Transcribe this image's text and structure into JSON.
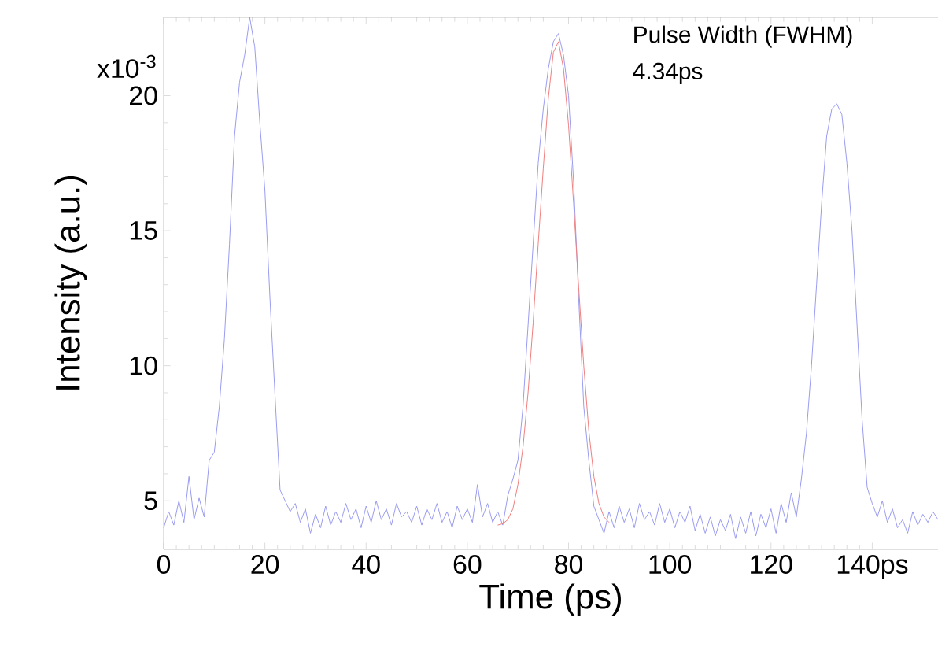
{
  "chart_data": {
    "type": "line",
    "xlabel": "Time (ps)",
    "ylabel": "Intensity (a.u.)",
    "annotations": [
      "x10$^{-3}$",
      "Pulse Width (FWHM)",
      "4.34ps"
    ],
    "xlim": [
      0,
      153
    ],
    "ylim": [
      3.2,
      22.9
    ],
    "xticks": [
      0,
      20,
      40,
      60,
      80,
      100,
      120,
      {
        "value": 140,
        "label": "140ps"
      }
    ],
    "yticks": [
      5,
      10,
      15,
      20
    ],
    "grid": false,
    "marker": "none",
    "line_style": "solid",
    "series": [
      {
        "color": "#9a9cf0",
        "x": [
          0,
          1,
          2,
          3,
          4,
          5,
          6,
          7,
          8,
          9,
          10,
          11,
          12,
          13,
          14,
          15,
          16,
          17,
          18,
          19,
          20,
          21,
          22,
          23,
          24,
          25,
          26,
          27,
          28,
          29,
          30,
          31,
          32,
          33,
          34,
          35,
          36,
          37,
          38,
          39,
          40,
          41,
          42,
          43,
          44,
          45,
          46,
          47,
          48,
          49,
          50,
          51,
          52,
          53,
          54,
          55,
          56,
          57,
          58,
          59,
          60,
          61,
          62,
          63,
          64,
          65,
          66,
          67,
          68,
          69,
          70,
          71,
          72,
          73,
          74,
          75,
          76,
          77,
          78,
          79,
          80,
          81,
          82,
          83,
          84,
          85,
          86,
          87,
          88,
          89,
          90,
          91,
          92,
          93,
          94,
          95,
          96,
          97,
          98,
          99,
          100,
          101,
          102,
          103,
          104,
          105,
          106,
          107,
          108,
          109,
          110,
          111,
          112,
          113,
          114,
          115,
          116,
          117,
          118,
          119,
          120,
          121,
          122,
          123,
          124,
          125,
          126,
          127,
          128,
          129,
          130,
          131,
          132,
          133,
          134,
          135,
          136,
          137,
          138,
          139,
          140,
          141,
          142,
          143,
          144,
          145,
          146,
          147,
          148,
          149,
          150,
          151,
          152,
          153
        ],
        "values": [
          4.0,
          4.6,
          4.1,
          5.0,
          4.2,
          5.9,
          4.3,
          5.1,
          4.4,
          6.5,
          6.8,
          8.5,
          11,
          14.5,
          18.5,
          20.5,
          21.5,
          22.9,
          21.8,
          19,
          16.5,
          12.5,
          8.9,
          5.4,
          5.0,
          4.6,
          4.9,
          4.2,
          4.7,
          3.8,
          4.5,
          4.0,
          4.8,
          4.1,
          4.6,
          4.2,
          4.9,
          4.3,
          4.7,
          4.0,
          4.8,
          4.2,
          5.0,
          4.3,
          4.7,
          4.1,
          4.9,
          4.4,
          4.6,
          4.2,
          4.8,
          4.1,
          4.7,
          4.3,
          4.9,
          4.2,
          4.6,
          4.0,
          4.8,
          4.3,
          4.7,
          4.2,
          5.6,
          4.4,
          4.9,
          4.2,
          4.6,
          4.1,
          5.2,
          5.8,
          6.5,
          8.5,
          11.5,
          14.5,
          17.5,
          19.5,
          21,
          22,
          22.3,
          21.5,
          20,
          16.8,
          12.5,
          8.5,
          6.5,
          4.8,
          4.3,
          3.8,
          4.6,
          4.0,
          4.8,
          4.2,
          4.7,
          4.0,
          4.9,
          4.3,
          4.6,
          4.1,
          4.9,
          4.2,
          4.7,
          4.0,
          4.6,
          4.2,
          4.8,
          3.9,
          4.5,
          3.8,
          4.4,
          3.7,
          4.3,
          3.9,
          4.5,
          3.6,
          4.4,
          3.8,
          4.6,
          3.7,
          4.5,
          4.0,
          4.7,
          3.8,
          4.9,
          4.2,
          5.3,
          4.4,
          5.8,
          7.5,
          10,
          13,
          16,
          18.5,
          19.5,
          19.7,
          19.3,
          17.5,
          15,
          11.5,
          8,
          5.5,
          4.9,
          4.4,
          5.0,
          4.2,
          4.7,
          4.0,
          4.3,
          3.8,
          4.6,
          4.1,
          4.5,
          4.2,
          4.6,
          4.3
        ]
      },
      {
        "color": "#f08080",
        "x": [
          66,
          67,
          68,
          69,
          70,
          71,
          72,
          73,
          74,
          75,
          76,
          77,
          78,
          79,
          80,
          81,
          82,
          83,
          84,
          85,
          86,
          87,
          88
        ],
        "values": [
          4.1,
          4.15,
          4.3,
          4.7,
          5.6,
          7.0,
          9.0,
          11.6,
          14.5,
          17.3,
          19.9,
          21.6,
          22.0,
          21.0,
          18.9,
          16.0,
          12.9,
          10.0,
          7.6,
          5.9,
          4.9,
          4.4,
          4.2
        ]
      }
    ]
  }
}
